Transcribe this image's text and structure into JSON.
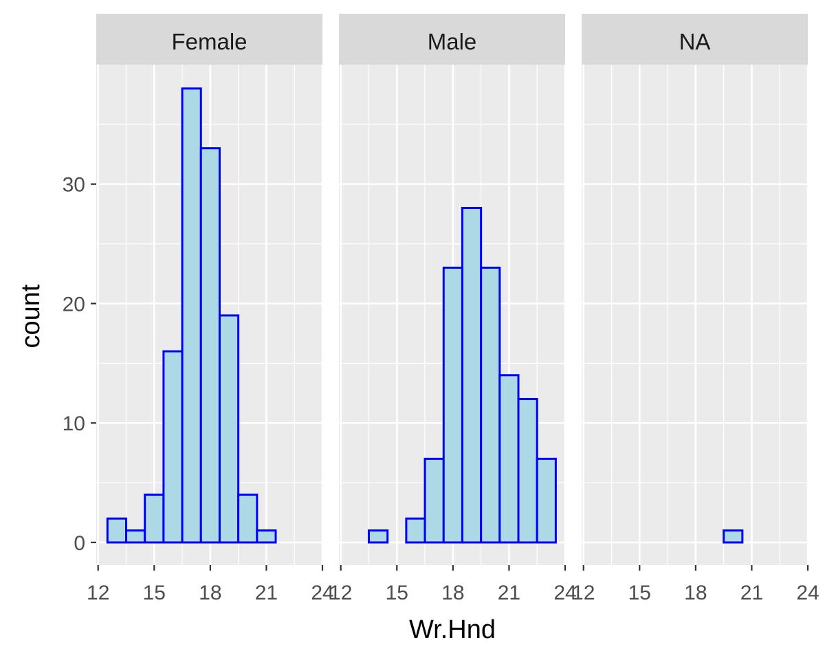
{
  "chart_data": {
    "type": "histogram",
    "xlabel": "Wr.Hnd",
    "ylabel": "count",
    "x_ticks": [
      "12",
      "15",
      "18",
      "21",
      "24"
    ],
    "y_ticks": [
      "0",
      "10",
      "20",
      "30"
    ],
    "xlim": [
      11.9,
      24.0
    ],
    "ylim": [
      -1.9,
      40
    ],
    "bin_width": 1,
    "bin_starts": [
      12.5,
      13.5,
      14.5,
      15.5,
      16.5,
      17.5,
      18.5,
      19.5,
      20.5,
      21.5,
      22.5
    ],
    "grid": true,
    "fill_color": "#add8e6",
    "border_color": "#0000ff",
    "panel_background": "#ebebeb",
    "strip_background": "#d9d9d9",
    "panels": [
      {
        "label": "Female",
        "counts": [
          2,
          1,
          4,
          16,
          38,
          33,
          19,
          4,
          1,
          0,
          0
        ]
      },
      {
        "label": "Male",
        "counts": [
          0,
          1,
          0,
          2,
          7,
          23,
          28,
          23,
          14,
          12,
          7
        ]
      },
      {
        "label": "NA",
        "counts": [
          0,
          0,
          0,
          0,
          0,
          0,
          0,
          1,
          0,
          0,
          0
        ]
      }
    ]
  }
}
